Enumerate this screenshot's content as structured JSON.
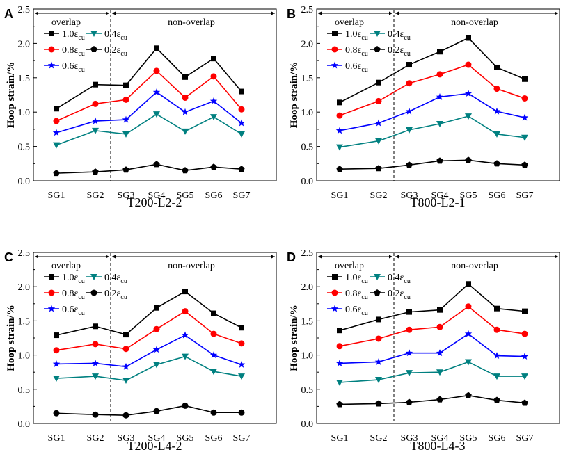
{
  "chart_data": [
    {
      "type": "line",
      "panel_label": "A",
      "caption": "T200-L2-2",
      "ylabel": "Hoop strain/%",
      "xlabel": "",
      "ylim": [
        0,
        2.5
      ],
      "yticks": [
        "0.0",
        "0.5",
        "1.0",
        "1.5",
        "2.0",
        "2.5"
      ],
      "categories": [
        "SG1",
        "SG2",
        "SG3",
        "SG4",
        "SG5",
        "SG6",
        "SG7"
      ],
      "regions": [
        {
          "label": "overlap"
        },
        {
          "label": "non-overlap"
        }
      ],
      "series": [
        {
          "name": "1.0",
          "color": "#000000",
          "marker": "square",
          "values": [
            1.05,
            1.4,
            1.39,
            1.93,
            1.51,
            1.78,
            1.3
          ]
        },
        {
          "name": "0.8",
          "color": "#ff0000",
          "marker": "circle",
          "values": [
            0.87,
            1.12,
            1.18,
            1.6,
            1.21,
            1.52,
            1.04
          ]
        },
        {
          "name": "0.6",
          "color": "#0000ff",
          "marker": "star",
          "values": [
            0.7,
            0.87,
            0.89,
            1.29,
            1.0,
            1.16,
            0.84
          ]
        },
        {
          "name": "0.4",
          "color": "#008080",
          "marker": "triangle-down",
          "values": [
            0.52,
            0.73,
            0.68,
            0.97,
            0.72,
            0.93,
            0.68
          ]
        },
        {
          "name": "0.2",
          "color": "#000000",
          "marker": "pentagon",
          "values": [
            0.11,
            0.13,
            0.16,
            0.24,
            0.15,
            0.2,
            0.17
          ]
        }
      ]
    },
    {
      "type": "line",
      "panel_label": "B",
      "caption": "T800-L2-1",
      "ylabel": "Hoop strain/%",
      "xlabel": "",
      "ylim": [
        0,
        2.5
      ],
      "yticks": [
        "0.0",
        "0.5",
        "1.0",
        "1.5",
        "2.0",
        "2.5"
      ],
      "categories": [
        "SG1",
        "SG2",
        "SG3",
        "SG4",
        "SG5",
        "SG6",
        "SG7"
      ],
      "regions": [
        {
          "label": "overlap"
        },
        {
          "label": "non-overlap"
        }
      ],
      "series": [
        {
          "name": "1.0",
          "color": "#000000",
          "marker": "square",
          "values": [
            1.14,
            1.43,
            1.69,
            1.88,
            2.08,
            1.65,
            1.48
          ]
        },
        {
          "name": "0.8",
          "color": "#ff0000",
          "marker": "circle",
          "values": [
            0.95,
            1.16,
            1.42,
            1.55,
            1.69,
            1.34,
            1.2
          ]
        },
        {
          "name": "0.6",
          "color": "#0000ff",
          "marker": "star",
          "values": [
            0.73,
            0.84,
            1.01,
            1.22,
            1.27,
            1.01,
            0.92
          ]
        },
        {
          "name": "0.4",
          "color": "#008080",
          "marker": "triangle-down",
          "values": [
            0.49,
            0.58,
            0.74,
            0.83,
            0.94,
            0.68,
            0.63
          ]
        },
        {
          "name": "0.2",
          "color": "#000000",
          "marker": "pentagon",
          "values": [
            0.17,
            0.18,
            0.23,
            0.29,
            0.3,
            0.25,
            0.23
          ]
        }
      ]
    },
    {
      "type": "line",
      "panel_label": "C",
      "caption": "T200-L4-2",
      "ylabel": "Hoop strain/%",
      "xlabel": "",
      "ylim": [
        0,
        2.5
      ],
      "yticks": [
        "0.0",
        "0.5",
        "1.0",
        "1.5",
        "2.0",
        "2.5"
      ],
      "categories": [
        "SG1",
        "SG2",
        "SG3",
        "SG4",
        "SG5",
        "SG6",
        "SG7"
      ],
      "regions": [
        {
          "label": "overlap"
        },
        {
          "label": "non-overlap"
        }
      ],
      "series": [
        {
          "name": "1.0",
          "color": "#000000",
          "marker": "square",
          "values": [
            1.29,
            1.42,
            1.3,
            1.69,
            1.93,
            1.61,
            1.4
          ]
        },
        {
          "name": "0.8",
          "color": "#ff0000",
          "marker": "circle",
          "values": [
            1.07,
            1.16,
            1.09,
            1.38,
            1.64,
            1.31,
            1.17
          ]
        },
        {
          "name": "0.6",
          "color": "#0000ff",
          "marker": "star",
          "values": [
            0.87,
            0.88,
            0.83,
            1.08,
            1.29,
            1.0,
            0.86
          ]
        },
        {
          "name": "0.4",
          "color": "#008080",
          "marker": "triangle-down",
          "values": [
            0.66,
            0.69,
            0.63,
            0.86,
            0.98,
            0.76,
            0.69
          ]
        },
        {
          "name": "0.2",
          "color": "#000000",
          "marker": "circle",
          "values": [
            0.15,
            0.13,
            0.12,
            0.18,
            0.26,
            0.16,
            0.16
          ]
        }
      ]
    },
    {
      "type": "line",
      "panel_label": "D",
      "caption": "T800-L4-3",
      "ylabel": "Hoop strain/%",
      "xlabel": "",
      "ylim": [
        0,
        2.5
      ],
      "yticks": [
        "0.0",
        "0.5",
        "1.0",
        "1.5",
        "2.0",
        "2.5"
      ],
      "categories": [
        "SG1",
        "SG2",
        "SG3",
        "SG4",
        "SG5",
        "SG6",
        "SG7"
      ],
      "regions": [
        {
          "label": "overlap"
        },
        {
          "label": "non-overlap"
        }
      ],
      "series": [
        {
          "name": "1.0",
          "color": "#000000",
          "marker": "square",
          "values": [
            1.36,
            1.52,
            1.63,
            1.66,
            2.04,
            1.68,
            1.64
          ]
        },
        {
          "name": "0.8",
          "color": "#ff0000",
          "marker": "circle",
          "values": [
            1.13,
            1.24,
            1.37,
            1.41,
            1.71,
            1.37,
            1.31
          ]
        },
        {
          "name": "0.6",
          "color": "#0000ff",
          "marker": "star",
          "values": [
            0.88,
            0.9,
            1.03,
            1.03,
            1.31,
            0.99,
            0.98
          ]
        },
        {
          "name": "0.4",
          "color": "#008080",
          "marker": "triangle-down",
          "values": [
            0.6,
            0.64,
            0.74,
            0.75,
            0.9,
            0.69,
            0.69
          ]
        },
        {
          "name": "0.2",
          "color": "#000000",
          "marker": "pentagon",
          "values": [
            0.28,
            0.29,
            0.31,
            0.35,
            0.41,
            0.34,
            0.3
          ]
        }
      ]
    }
  ],
  "legend_symbol": "ε",
  "legend_subscript": "cu"
}
